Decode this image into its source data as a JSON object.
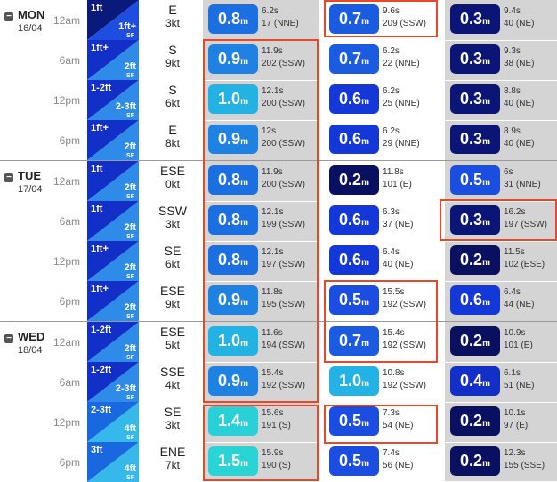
{
  "theme": {
    "highlight_color": "#e8472a",
    "swell1_bg": "#d4d4d4",
    "swell3_bg": "#d4d4d4",
    "collapse_icon": "minus-icon"
  },
  "days": [
    {
      "name": "MON",
      "date": "16/04",
      "rows": [
        {
          "time": "12am",
          "surf": {
            "top": "1ft",
            "bot": "1ft+",
            "sf": "SF",
            "c1": "#0a1a7a",
            "c2": "#1e4ee0"
          },
          "wind": {
            "dir": "E",
            "speed": "3kt"
          },
          "s1": {
            "h": "0.8",
            "u": "m",
            "p": "6.2s",
            "d": "17 (NNE)",
            "c": "#1b6fe0"
          },
          "s2": {
            "h": "0.7",
            "u": "m",
            "p": "9.6s",
            "d": "209 (SSW)",
            "c": "#1a5be0"
          },
          "s3": {
            "h": "0.3",
            "u": "m",
            "p": "9.4s",
            "d": "40 (NE)",
            "c": "#0b1575"
          }
        },
        {
          "time": "6am",
          "surf": {
            "top": "1ft+",
            "bot": "2ft",
            "sf": "SF",
            "c1": "#1230c8",
            "c2": "#2e8ce8"
          },
          "wind": {
            "dir": "S",
            "speed": "9kt"
          },
          "s1": {
            "h": "0.9",
            "u": "m",
            "p": "11.9s",
            "d": "202 (SSW)",
            "c": "#1f82e2"
          },
          "s2": {
            "h": "0.7",
            "u": "m",
            "p": "6.2s",
            "d": "22 (NNE)",
            "c": "#1a5be0"
          },
          "s3": {
            "h": "0.3",
            "u": "m",
            "p": "9.3s",
            "d": "38 (NE)",
            "c": "#0b1575"
          }
        },
        {
          "time": "12pm",
          "surf": {
            "top": "1-2ft",
            "bot": "2-3ft",
            "sf": "SF",
            "c1": "#1230c8",
            "c2": "#2e8ce8"
          },
          "wind": {
            "dir": "S",
            "speed": "6kt"
          },
          "s1": {
            "h": "1.0",
            "u": "m",
            "p": "12.1s",
            "d": "200 (SSW)",
            "c": "#22b2e4"
          },
          "s2": {
            "h": "0.6",
            "u": "m",
            "p": "6.2s",
            "d": "25 (NNE)",
            "c": "#1438d8"
          },
          "s3": {
            "h": "0.3",
            "u": "m",
            "p": "8.8s",
            "d": "40 (NE)",
            "c": "#0b1575"
          }
        },
        {
          "time": "6pm",
          "surf": {
            "top": "1ft+",
            "bot": "2ft",
            "sf": "SF",
            "c1": "#1230c8",
            "c2": "#2e8ce8"
          },
          "wind": {
            "dir": "E",
            "speed": "8kt"
          },
          "s1": {
            "h": "0.9",
            "u": "m",
            "p": "12s",
            "d": "200 (SSW)",
            "c": "#1f82e2"
          },
          "s2": {
            "h": "0.6",
            "u": "m",
            "p": "6.2s",
            "d": "29 (NNE)",
            "c": "#1438d8"
          },
          "s3": {
            "h": "0.3",
            "u": "m",
            "p": "8.9s",
            "d": "40 (NE)",
            "c": "#0b1575"
          }
        }
      ]
    },
    {
      "name": "TUE",
      "date": "17/04",
      "rows": [
        {
          "time": "12am",
          "surf": {
            "top": "1ft",
            "bot": "2ft",
            "sf": "SF",
            "c1": "#1230c8",
            "c2": "#2e8ce8"
          },
          "wind": {
            "dir": "ESE",
            "speed": "0kt"
          },
          "s1": {
            "h": "0.8",
            "u": "m",
            "p": "11.9s",
            "d": "200 (SSW)",
            "c": "#1b6fe0"
          },
          "s2": {
            "h": "0.2",
            "u": "m",
            "p": "11.8s",
            "d": "101 (E)",
            "c": "#0a1060"
          },
          "s3": {
            "h": "0.5",
            "u": "m",
            "p": "6s",
            "d": "31 (NNE)",
            "c": "#1a4de0"
          }
        },
        {
          "time": "6am",
          "surf": {
            "top": "1ft",
            "bot": "2ft",
            "sf": "SF",
            "c1": "#1230c8",
            "c2": "#2e8ce8"
          },
          "wind": {
            "dir": "SSW",
            "speed": "3kt"
          },
          "s1": {
            "h": "0.8",
            "u": "m",
            "p": "12.1s",
            "d": "199 (SSW)",
            "c": "#1b6fe0"
          },
          "s2": {
            "h": "0.6",
            "u": "m",
            "p": "6.3s",
            "d": "37 (NE)",
            "c": "#1438d8"
          },
          "s3": {
            "h": "0.3",
            "u": "m",
            "p": "16.2s",
            "d": "197 (SSW)",
            "c": "#0b1575"
          }
        },
        {
          "time": "12pm",
          "surf": {
            "top": "1ft+",
            "bot": "2ft",
            "sf": "SF",
            "c1": "#1230c8",
            "c2": "#2e8ce8"
          },
          "wind": {
            "dir": "SE",
            "speed": "6kt"
          },
          "s1": {
            "h": "0.8",
            "u": "m",
            "p": "12.1s",
            "d": "197 (SSW)",
            "c": "#1b6fe0"
          },
          "s2": {
            "h": "0.6",
            "u": "m",
            "p": "6.4s",
            "d": "40 (NE)",
            "c": "#1438d8"
          },
          "s3": {
            "h": "0.2",
            "u": "m",
            "p": "11.5s",
            "d": "102 (ESE)",
            "c": "#0a1060"
          }
        },
        {
          "time": "6pm",
          "surf": {
            "top": "1ft+",
            "bot": "2ft",
            "sf": "SF",
            "c1": "#1230c8",
            "c2": "#2e8ce8"
          },
          "wind": {
            "dir": "ESE",
            "speed": "9kt"
          },
          "s1": {
            "h": "0.9",
            "u": "m",
            "p": "11.8s",
            "d": "195 (SSW)",
            "c": "#1f82e2"
          },
          "s2": {
            "h": "0.5",
            "u": "m",
            "p": "15.5s",
            "d": "192 (SSW)",
            "c": "#1a4de0"
          },
          "s3": {
            "h": "0.6",
            "u": "m",
            "p": "6.4s",
            "d": "44 (NE)",
            "c": "#1438d8"
          }
        }
      ]
    },
    {
      "name": "WED",
      "date": "18/04",
      "rows": [
        {
          "time": "12am",
          "surf": {
            "top": "1-2ft",
            "bot": "2ft",
            "sf": "SF",
            "c1": "#1230c8",
            "c2": "#2e8ce8"
          },
          "wind": {
            "dir": "ESE",
            "speed": "5kt"
          },
          "s1": {
            "h": "1.0",
            "u": "m",
            "p": "11.6s",
            "d": "194 (SSW)",
            "c": "#22b2e4"
          },
          "s2": {
            "h": "0.7",
            "u": "m",
            "p": "15.4s",
            "d": "192 (SSW)",
            "c": "#1a5be0"
          },
          "s3": {
            "h": "0.2",
            "u": "m",
            "p": "10.9s",
            "d": "101 (E)",
            "c": "#0a1060"
          }
        },
        {
          "time": "6am",
          "surf": {
            "top": "1-2ft",
            "bot": "2-3ft",
            "sf": "SF",
            "c1": "#1230c8",
            "c2": "#2e8ce8"
          },
          "wind": {
            "dir": "SSE",
            "speed": "4kt"
          },
          "s1": {
            "h": "0.9",
            "u": "m",
            "p": "15.4s",
            "d": "192 (SSW)",
            "c": "#1f82e2"
          },
          "s2": {
            "h": "1.0",
            "u": "m",
            "p": "10.8s",
            "d": "192 (SSW)",
            "c": "#22b2e4"
          },
          "s3": {
            "h": "0.4",
            "u": "m",
            "p": "6.1s",
            "d": "51 (NE)",
            "c": "#1230c8"
          }
        },
        {
          "time": "12pm",
          "surf": {
            "top": "2-3ft",
            "bot": "4ft",
            "sf": "SF",
            "c1": "#1a68e0",
            "c2": "#36b8ea"
          },
          "wind": {
            "dir": "SE",
            "speed": "3kt"
          },
          "s1": {
            "h": "1.4",
            "u": "m",
            "p": "15.6s",
            "d": "191 (S)",
            "c": "#2ad0d8"
          },
          "s2": {
            "h": "0.5",
            "u": "m",
            "p": "7.3s",
            "d": "54 (NE)",
            "c": "#1a4de0"
          },
          "s3": {
            "h": "0.2",
            "u": "m",
            "p": "10.1s",
            "d": "97 (E)",
            "c": "#0a1060"
          }
        },
        {
          "time": "6pm",
          "surf": {
            "top": "3ft",
            "bot": "4ft",
            "sf": "SF",
            "c1": "#1a68e0",
            "c2": "#36b8ea"
          },
          "wind": {
            "dir": "ENE",
            "speed": "7kt"
          },
          "s1": {
            "h": "1.5",
            "u": "m",
            "p": "15.9s",
            "d": "190 (S)",
            "c": "#2ad4d4"
          },
          "s2": {
            "h": "0.5",
            "u": "m",
            "p": "7.4s",
            "d": "56 (NE)",
            "c": "#1a4de0"
          },
          "s3": {
            "h": "0.2",
            "u": "m",
            "p": "12.3s",
            "d": "155 (SSE)",
            "c": "#0a1060"
          }
        }
      ]
    }
  ]
}
